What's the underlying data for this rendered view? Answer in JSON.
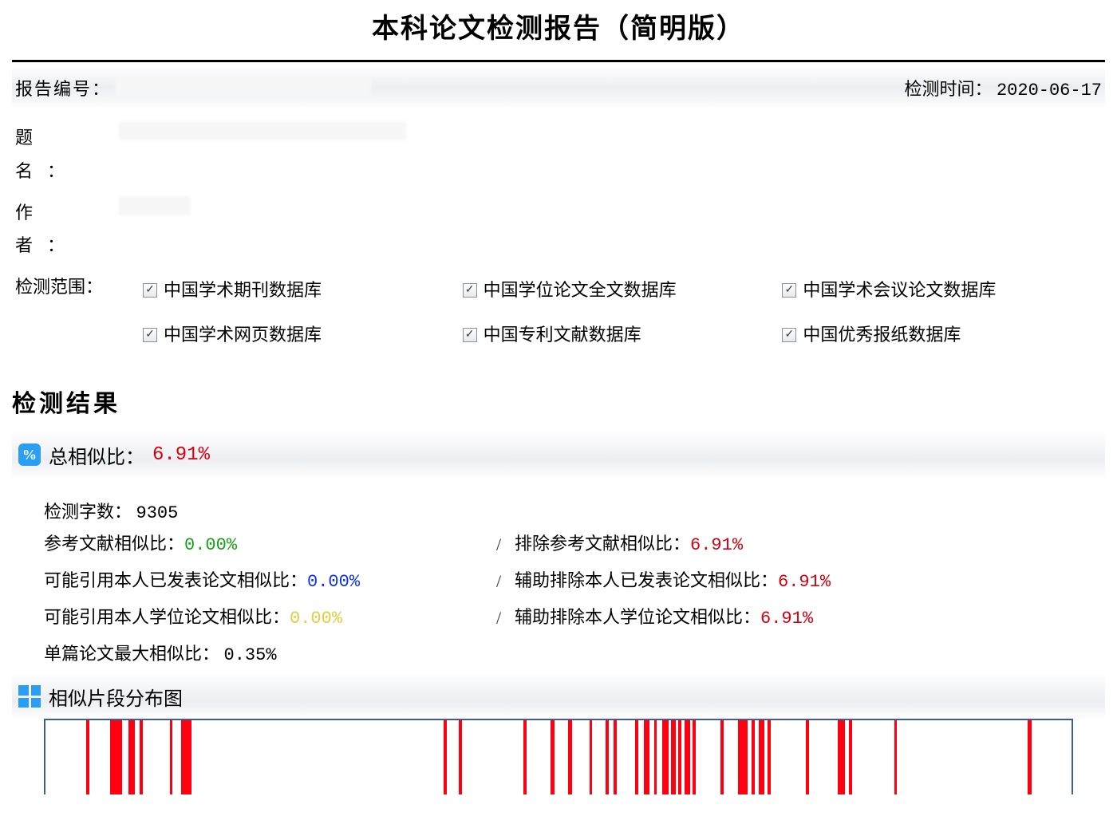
{
  "title": "本科论文检测报告（简明版）",
  "report_id_label": "报告编号：",
  "detect_time_label": "检测时间：",
  "detect_time": "2020-06-17",
  "fields": {
    "title_label": "题名：",
    "author_label": "作者：",
    "range_label": "检测范围："
  },
  "databases": [
    "中国学术期刊数据库",
    "中国学位论文全文数据库",
    "中国学术会议论文数据库",
    "中国学术网页数据库",
    "中国专利文献数据库",
    "中国优秀报纸数据库"
  ],
  "section_results": "检测结果",
  "overall": {
    "label": "总相似比：",
    "value": "6.91%",
    "value_color": "#d6000f"
  },
  "stats": {
    "char_count_label": "检测字数：",
    "char_count": "9305",
    "rows": [
      {
        "left_label": "参考文献相似比：",
        "left_value": "0.00%",
        "left_color": "#1aa01a",
        "right_label": "排除参考文献相似比：",
        "right_value": "6.91%",
        "right_color": "#d6000f"
      },
      {
        "left_label": "可能引用本人已发表论文相似比：",
        "left_value": "0.00%",
        "left_color": "#1030f0",
        "right_label": "辅助排除本人已发表论文相似比：",
        "right_value": "6.91%",
        "right_color": "#d6000f"
      },
      {
        "left_label": "可能引用本人学位论文相似比：",
        "left_value": "0.00%",
        "left_color": "#e0d040",
        "right_label": "辅助排除本人学位论文相似比：",
        "right_value": "6.91%",
        "right_color": "#d6000f"
      }
    ],
    "max_single_label": "单篇论文最大相似比：",
    "max_single_value": "0.35%"
  },
  "dist_label": "相似片段分布图",
  "dist_chart": {
    "border_color": "#3b5ba5",
    "stripe_color": "#ff0010",
    "stripes_pct": [
      {
        "x": 4.0,
        "w": 0.3
      },
      {
        "x": 6.3,
        "w": 1.2
      },
      {
        "x": 8.1,
        "w": 0.6
      },
      {
        "x": 9.2,
        "w": 0.3
      },
      {
        "x": 12.1,
        "w": 0.3
      },
      {
        "x": 13.2,
        "w": 1.0
      },
      {
        "x": 38.8,
        "w": 0.3
      },
      {
        "x": 40.3,
        "w": 0.3
      },
      {
        "x": 46.6,
        "w": 0.3
      },
      {
        "x": 49.2,
        "w": 0.4
      },
      {
        "x": 50.9,
        "w": 0.4
      },
      {
        "x": 53.0,
        "w": 0.3
      },
      {
        "x": 54.6,
        "w": 0.3
      },
      {
        "x": 55.4,
        "w": 0.3
      },
      {
        "x": 57.5,
        "w": 0.3
      },
      {
        "x": 58.3,
        "w": 0.6
      },
      {
        "x": 59.3,
        "w": 0.3
      },
      {
        "x": 60.1,
        "w": 0.6
      },
      {
        "x": 61.0,
        "w": 0.4
      },
      {
        "x": 61.7,
        "w": 0.3
      },
      {
        "x": 62.3,
        "w": 0.5
      },
      {
        "x": 63.1,
        "w": 0.3
      },
      {
        "x": 65.8,
        "w": 0.3
      },
      {
        "x": 67.5,
        "w": 0.9
      },
      {
        "x": 68.8,
        "w": 0.3
      },
      {
        "x": 69.5,
        "w": 0.6
      },
      {
        "x": 70.4,
        "w": 0.3
      },
      {
        "x": 74.1,
        "w": 0.3
      },
      {
        "x": 77.2,
        "w": 0.7
      },
      {
        "x": 78.3,
        "w": 0.3
      },
      {
        "x": 82.7,
        "w": 0.3
      },
      {
        "x": 95.7,
        "w": 0.4
      }
    ]
  }
}
